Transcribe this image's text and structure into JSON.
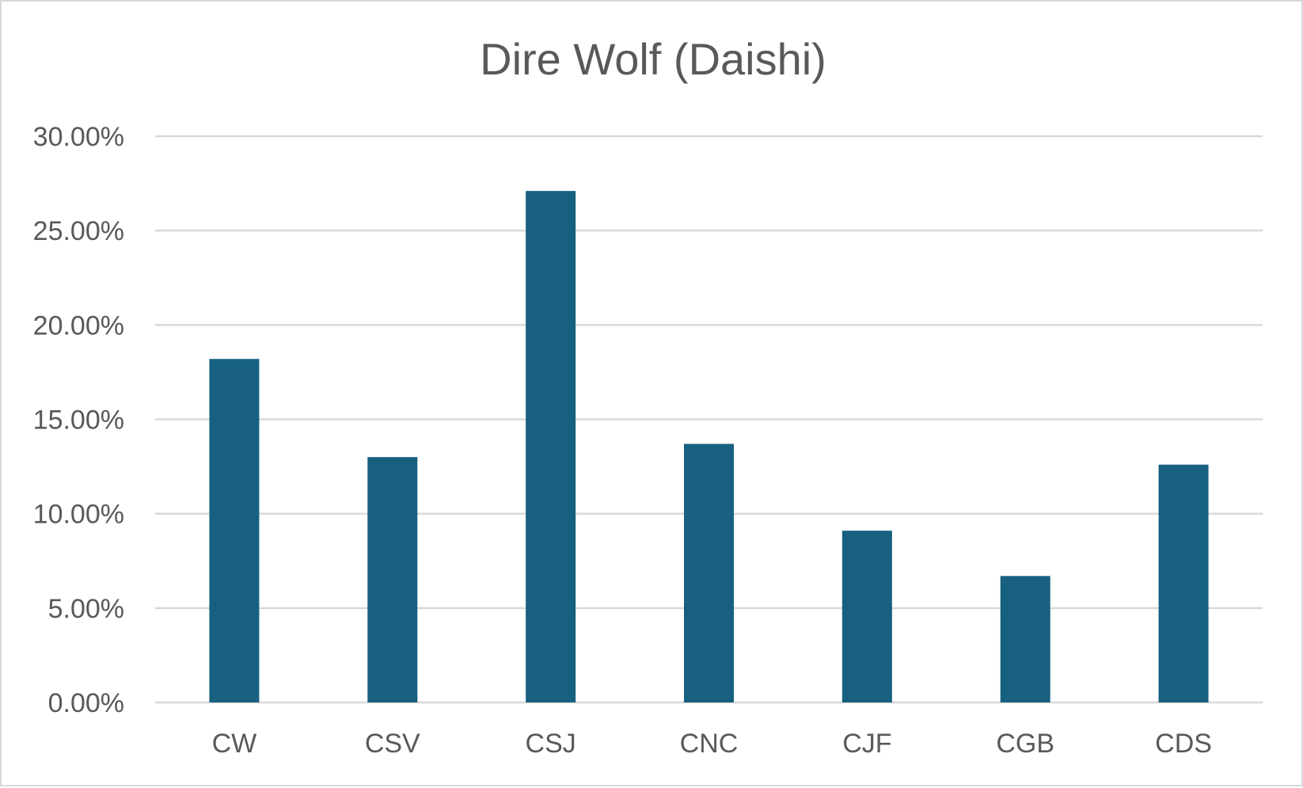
{
  "chart_data": {
    "type": "bar",
    "title": "Dire Wolf (Daishi)",
    "xlabel": "",
    "ylabel": "",
    "categories": [
      "CW",
      "CSV",
      "CSJ",
      "CNC",
      "CJF",
      "CGB",
      "CDS"
    ],
    "values": [
      0.182,
      0.13,
      0.271,
      0.137,
      0.091,
      0.067,
      0.126
    ],
    "ylim": [
      0,
      0.3
    ],
    "yticks": [
      0,
      0.05,
      0.1,
      0.15,
      0.2,
      0.25,
      0.3
    ],
    "ytick_labels": [
      "0.00%",
      "5.00%",
      "10.00%",
      "15.00%",
      "20.00%",
      "25.00%",
      "30.00%"
    ],
    "grid": true,
    "legend": "none",
    "bar_color": "#17607f",
    "gridline_color": "#d9d9d9"
  }
}
